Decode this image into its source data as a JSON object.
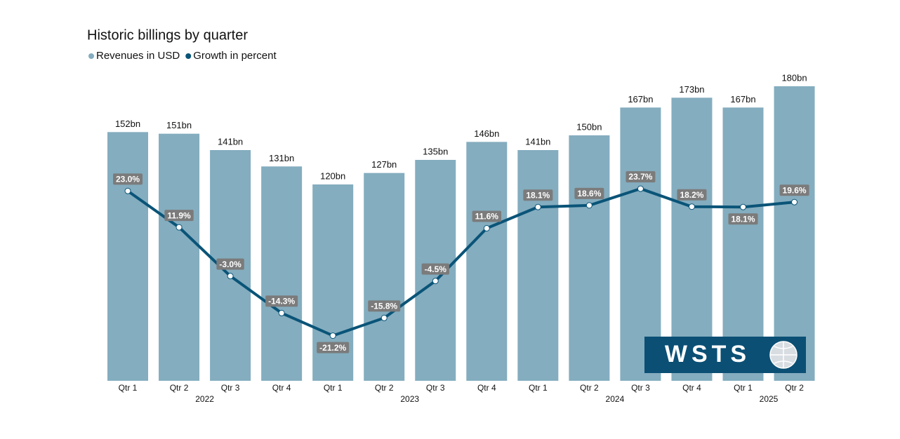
{
  "chart_data": {
    "type": "combo",
    "title": "Historic billings by quarter",
    "categories": [
      "Qtr 1",
      "Qtr 2",
      "Qtr 3",
      "Qtr 4",
      "Qtr 1",
      "Qtr 2",
      "Qtr 3",
      "Qtr 4",
      "Qtr 1",
      "Qtr 2",
      "Qtr 3",
      "Qtr 4",
      "Qtr 1",
      "Qtr 2"
    ],
    "years": [
      "2022",
      "2023",
      "2024",
      "2025"
    ],
    "series": [
      {
        "name": "Revenues in USD",
        "type": "bar",
        "color": "#84adbf",
        "values": [
          152,
          151,
          141,
          131,
          120,
          127,
          135,
          146,
          141,
          150,
          167,
          173,
          167,
          180
        ],
        "value_labels": [
          "152bn",
          "151bn",
          "141bn",
          "131bn",
          "120bn",
          "127bn",
          "135bn",
          "146bn",
          "141bn",
          "150bn",
          "167bn",
          "173bn",
          "167bn",
          "180bn"
        ]
      },
      {
        "name": "Growth in percent",
        "type": "line",
        "axis": "y2",
        "color": "#0a5478",
        "values": [
          23.0,
          11.9,
          -3.0,
          -14.3,
          -21.2,
          -15.8,
          -4.5,
          11.6,
          18.1,
          18.6,
          23.7,
          18.2,
          18.1,
          19.6
        ],
        "value_labels": [
          "23.0%",
          "11.9%",
          "-3.0%",
          "-14.3%",
          "-21.2%",
          "-15.8%",
          "-4.5%",
          "11.6%",
          "18.1%",
          "18.6%",
          "23.7%",
          "18.2%",
          "18.1%",
          "19.6%"
        ]
      }
    ],
    "ylim": [
      0,
      180
    ],
    "y2lim": [
      -35,
      55
    ],
    "logo": "WSTS"
  }
}
